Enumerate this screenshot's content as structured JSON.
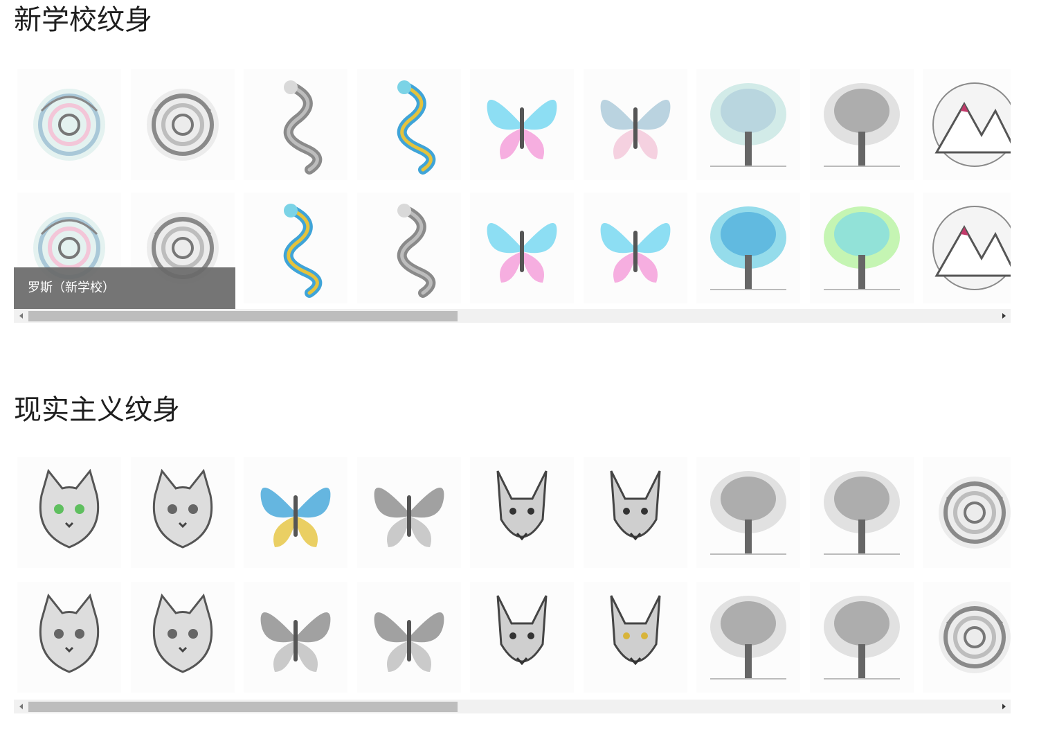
{
  "sections": [
    {
      "title": "新学校纹身",
      "caption": "罗斯（新学校）",
      "rows": [
        [
          "rose-pastel",
          "rose-gray",
          "dragon-sketch",
          "dragon-color",
          "butterfly-neon",
          "butterfly-green",
          "tree-pastel",
          "tree-bare",
          "mountain-circle"
        ],
        [
          "rose-teal",
          "rose-gray",
          "dragon-blue",
          "dragon-head",
          "butterfly-rainbow",
          "butterfly-pink",
          "tree-blue",
          "tree-pink",
          "mountain-sketch"
        ]
      ]
    },
    {
      "title": "现实主义纹身",
      "rows": [
        [
          "cat-green-eyes",
          "cat-sketch",
          "butterfly-realistic-color",
          "butterfly-gray",
          "jackal-anubis",
          "wolf-gray",
          "forest-bark",
          "pine-tree",
          "flower-stem"
        ],
        [
          "cat-crown",
          "cat-fluffy",
          "butterfly-ornate",
          "butterfly-fairy",
          "jackal-mask",
          "demon-wolf",
          "forest-tall",
          "forest-rocks",
          "peony-flower"
        ]
      ]
    }
  ],
  "colors": {
    "title": "#1e1e1e",
    "caption_bg": "#696969",
    "scroll_track": "#f1f1f1",
    "scroll_thumb": "#bdbdbd"
  },
  "icons": {
    "scroll_left": "triangle-left-icon",
    "scroll_right": "triangle-right-icon"
  }
}
